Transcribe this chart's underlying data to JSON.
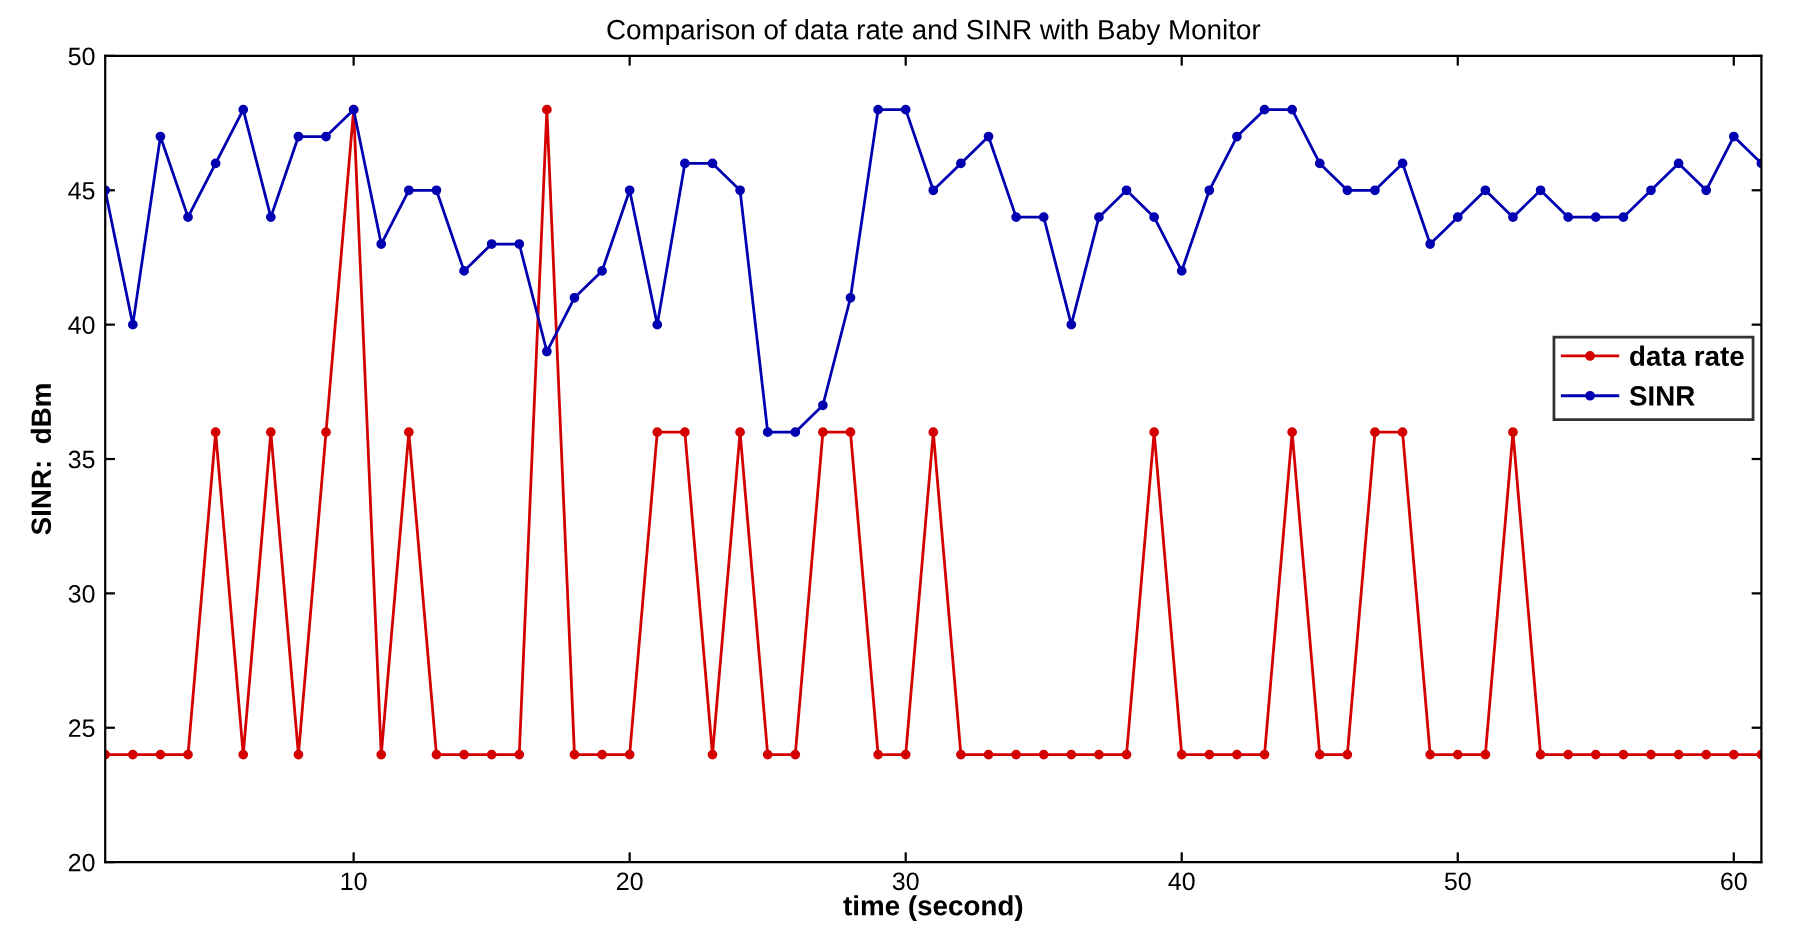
{
  "chart_data": {
    "type": "line",
    "title": "Comparison of data rate and SINR with Baby Monitor",
    "xlabel": "time (second)",
    "ylabel": "SINR:  dBm",
    "x": [
      1,
      2,
      3,
      4,
      5,
      6,
      7,
      8,
      9,
      10,
      11,
      12,
      13,
      14,
      15,
      16,
      17,
      18,
      19,
      20,
      21,
      22,
      23,
      24,
      25,
      26,
      27,
      28,
      29,
      30,
      31,
      32,
      33,
      34,
      35,
      36,
      37,
      38,
      39,
      40,
      41,
      42,
      43,
      44,
      45,
      46,
      47,
      48,
      49,
      50,
      51,
      52,
      53,
      54,
      55,
      56,
      57,
      58,
      59,
      60,
      61
    ],
    "series": [
      {
        "name": "data rate",
        "color": "#d40000",
        "values": [
          24,
          24,
          24,
          24,
          36,
          24,
          36,
          24,
          36,
          48,
          24,
          36,
          24,
          24,
          24,
          24,
          48,
          24,
          24,
          24,
          36,
          36,
          24,
          36,
          24,
          24,
          36,
          36,
          24,
          24,
          36,
          24,
          24,
          24,
          24,
          24,
          24,
          24,
          36,
          24,
          24,
          24,
          24,
          36,
          24,
          24,
          36,
          36,
          24,
          24,
          24,
          36,
          24,
          24,
          24,
          24,
          24,
          24,
          24,
          24,
          24
        ]
      },
      {
        "name": "SINR",
        "color": "#0000b0",
        "values": [
          45,
          40,
          47,
          44,
          46,
          48,
          44,
          47,
          47,
          48,
          43,
          45,
          45,
          42,
          43,
          43,
          39,
          41,
          42,
          45,
          40,
          46,
          46,
          45,
          36,
          36,
          37,
          41,
          48,
          48,
          45,
          46,
          47,
          44,
          44,
          40,
          44,
          45,
          44,
          42,
          45,
          47,
          48,
          48,
          46,
          45,
          45,
          46,
          43,
          44,
          45,
          44,
          45,
          44,
          44,
          44,
          45,
          46,
          45,
          47,
          46
        ]
      }
    ],
    "xlim": [
      1,
      61
    ],
    "ylim": [
      20,
      50
    ],
    "xticks": [
      10,
      20,
      30,
      40,
      50,
      60
    ],
    "yticks": [
      20,
      25,
      30,
      35,
      40,
      45,
      50
    ],
    "grid": false,
    "legend": "right",
    "marker": "circle",
    "line_style": "solid"
  }
}
